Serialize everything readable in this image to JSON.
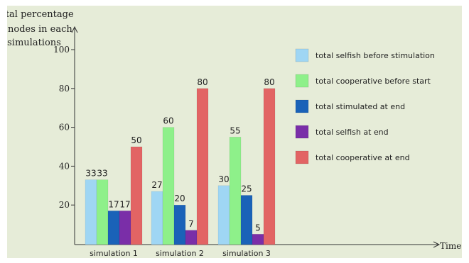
{
  "chart_data": {
    "type": "bar",
    "ylabel_lines": [
      "Total percentage",
      "of nodes in each",
      "simulations"
    ],
    "xlabel": "Time",
    "ylim": [
      0,
      100
    ],
    "yticks": [
      20,
      40,
      60,
      80,
      100
    ],
    "grid": false,
    "legend_position": "right",
    "categories": [
      "simulation 1",
      "simulation 2",
      "simulation 3"
    ],
    "series": [
      {
        "name": "total selfish before stimulation",
        "color": "#9fd6f4",
        "values": [
          33,
          27,
          30
        ]
      },
      {
        "name": "total cooperative before start",
        "color": "#8ef08a",
        "values": [
          33,
          60,
          55
        ]
      },
      {
        "name": "total stimulated at end",
        "color": "#1a62b8",
        "values": [
          17,
          20,
          25
        ]
      },
      {
        "name": "total selfish at end",
        "color": "#7a2ea8",
        "values": [
          17,
          7,
          5
        ]
      },
      {
        "name": "total cooperative at end",
        "color": "#e26464",
        "values": [
          50,
          80,
          80
        ]
      }
    ]
  }
}
